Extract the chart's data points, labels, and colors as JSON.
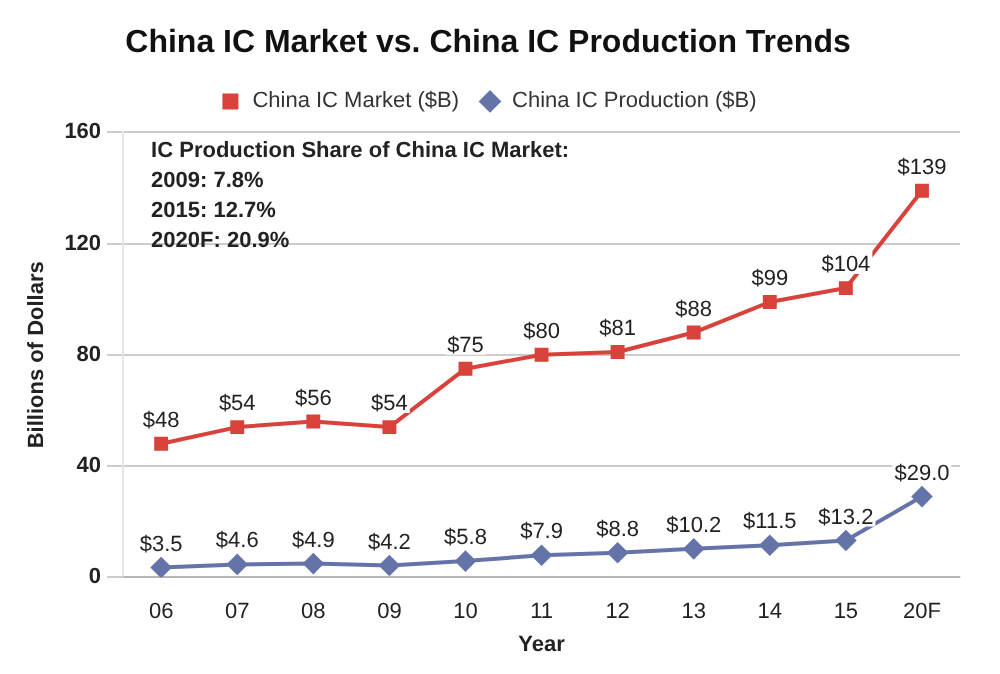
{
  "chart_data": {
    "type": "line",
    "title": "China IC Market vs. China IC Production Trends",
    "xlabel": "Year",
    "ylabel": "Billions of Dollars",
    "categories": [
      "06",
      "07",
      "08",
      "09",
      "10",
      "11",
      "12",
      "13",
      "14",
      "15",
      "20F"
    ],
    "series": [
      {
        "name": "China IC Market ($B)",
        "color": "#d9423a",
        "marker": "square",
        "values": [
          48,
          54,
          56,
          54,
          75,
          80,
          81,
          88,
          99,
          104,
          139
        ],
        "value_labels": [
          "$48",
          "$54",
          "$56",
          "$54",
          "$75",
          "$80",
          "$81",
          "$88",
          "$99",
          "$104",
          "$139"
        ]
      },
      {
        "name": "China IC Production ($B)",
        "color": "#6474a8",
        "marker": "diamond",
        "values": [
          3.5,
          4.6,
          4.9,
          4.2,
          5.8,
          7.9,
          8.8,
          10.2,
          11.5,
          13.2,
          29.0
        ],
        "value_labels": [
          "$3.5",
          "$4.6",
          "$4.9",
          "$4.2",
          "$5.8",
          "$7.9",
          "$8.8",
          "$10.2",
          "$11.5",
          "$13.2",
          "$29.0"
        ]
      }
    ],
    "ylim": [
      0,
      160
    ],
    "yticks": [
      0,
      40,
      80,
      120,
      160
    ],
    "grid": "y",
    "legend": "top",
    "line_style": "solid",
    "annotations": [
      "IC Production Share of China IC Market:",
      "2009: 7.8%",
      "2015: 12.7%",
      "2020F: 20.9%"
    ]
  }
}
